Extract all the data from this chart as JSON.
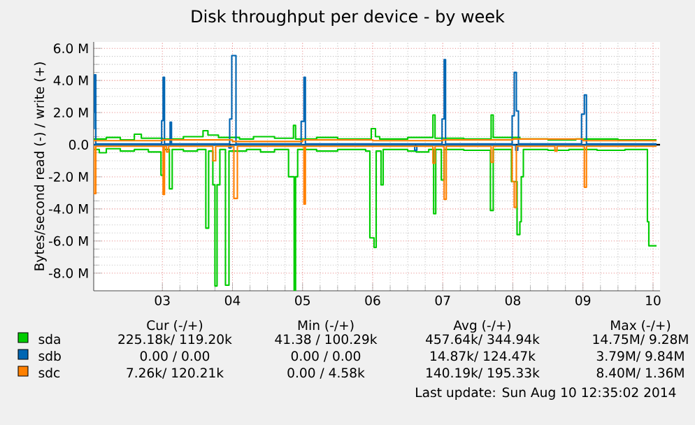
{
  "chart_data": {
    "type": "step",
    "title": "Disk throughput per device - by week",
    "ylabel": "Bytes/second read (-) / write (+)",
    "xlim": [
      2.02,
      10.1
    ],
    "xticks": [
      {
        "value": 3,
        "label": "03"
      },
      {
        "value": 4,
        "label": "04"
      },
      {
        "value": 5,
        "label": "05"
      },
      {
        "value": 6,
        "label": "06"
      },
      {
        "value": 7,
        "label": "07"
      },
      {
        "value": 8,
        "label": "08"
      },
      {
        "value": 9,
        "label": "09"
      },
      {
        "value": 10,
        "label": "10"
      }
    ],
    "ylim": [
      -9.1,
      6.4
    ],
    "yticks": [
      {
        "value": -8,
        "label": "-8.0 M"
      },
      {
        "value": -6,
        "label": "-6.0 M"
      },
      {
        "value": -4,
        "label": "-4.0 M"
      },
      {
        "value": -2,
        "label": "-2.0 M"
      },
      {
        "value": 0,
        "label": "0.0"
      },
      {
        "value": 2,
        "label": "2.0 M"
      },
      {
        "value": 4,
        "label": "4.0 M"
      },
      {
        "value": 6,
        "label": "6.0 M"
      }
    ],
    "grid": true,
    "legend": "bottom",
    "ref_lines": [
      {
        "axis": "y",
        "value": 0,
        "color": "#000000"
      }
    ],
    "series": [
      {
        "color": "#00cc00",
        "x": [
          2.02,
          2.1,
          2.2,
          2.4,
          2.6,
          2.8,
          2.98,
          3.02,
          3.1,
          3.14,
          3.3,
          3.5,
          3.62,
          3.66,
          3.72,
          3.75,
          3.78,
          3.82,
          3.9,
          3.95,
          4.2,
          4.4,
          4.6,
          4.8,
          4.88,
          4.9,
          4.93,
          5.2,
          5.5,
          5.9,
          5.96,
          6.02,
          6.05,
          6.12,
          6.15,
          6.5,
          6.62,
          6.8,
          6.87,
          6.9,
          6.98,
          7.02,
          7.3,
          7.68,
          7.72,
          7.98,
          8.06,
          8.1,
          8.12,
          8.15,
          8.5,
          8.8,
          9.2,
          9.6,
          9.92,
          9.94,
          10.05
        ],
        "values": [
          -0.3,
          -0.5,
          -0.25,
          -0.4,
          -0.3,
          -0.45,
          -1.9,
          -0.3,
          -2.75,
          -0.3,
          -0.4,
          -0.3,
          -5.2,
          -0.4,
          -2.5,
          -8.8,
          -2.5,
          -0.3,
          -8.75,
          -0.4,
          -0.3,
          -0.45,
          -0.3,
          -2.0,
          -9.1,
          -2.0,
          -0.3,
          -0.4,
          -0.3,
          -0.4,
          -5.8,
          -6.4,
          -0.4,
          -2.5,
          -0.3,
          -0.4,
          -0.45,
          -0.3,
          -4.3,
          -0.3,
          -2.2,
          -0.3,
          -0.35,
          -4.1,
          -0.3,
          -2.3,
          -5.6,
          -4.8,
          -2.0,
          -0.3,
          -0.35,
          -0.3,
          -0.35,
          -0.3,
          -4.8,
          -6.3,
          -6.3
        ]
      },
      {
        "name": "sda",
        "color": "#00cc00",
        "x": [
          2.02,
          2.2,
          2.4,
          2.6,
          2.7,
          3.0,
          3.3,
          3.58,
          3.65,
          3.8,
          4.1,
          4.3,
          4.6,
          4.87,
          4.9,
          5.2,
          5.5,
          5.98,
          6.04,
          6.1,
          6.5,
          6.86,
          6.89,
          7.3,
          7.69,
          7.72,
          8.1,
          8.5,
          8.9,
          9.5,
          10.05
        ],
        "values": [
          0.35,
          0.45,
          0.3,
          0.65,
          0.4,
          0.35,
          0.5,
          0.87,
          0.6,
          0.45,
          0.35,
          0.5,
          0.4,
          1.2,
          0.35,
          0.45,
          0.35,
          1.0,
          0.5,
          0.35,
          0.45,
          1.85,
          0.4,
          0.35,
          1.85,
          0.45,
          0.35,
          0.3,
          0.35,
          0.3,
          0.3
        ]
      },
      {
        "color": "#0066b3",
        "x": [
          2.02,
          3.95,
          3.98,
          6.6,
          6.63,
          8.04,
          8.07,
          10.05
        ],
        "values": [
          -0.02,
          -0.2,
          -0.02,
          -0.35,
          -0.02,
          -0.35,
          -0.02,
          -0.02
        ]
      },
      {
        "name": "sdb",
        "color": "#0066b3",
        "x": [
          2.02,
          2.025,
          2.03,
          2.05,
          2.99,
          3.01,
          3.03,
          3.11,
          3.13,
          3.96,
          3.99,
          4.05,
          4.98,
          5.02,
          5.04,
          6.99,
          7.02,
          7.04,
          7.99,
          8.02,
          8.05,
          8.08,
          8.98,
          9.02,
          9.05,
          10.05
        ],
        "values": [
          1.0,
          2.0,
          4.35,
          0.05,
          1.5,
          4.2,
          0.05,
          1.4,
          0.05,
          1.6,
          5.55,
          0.05,
          1.45,
          4.2,
          0.05,
          1.6,
          5.3,
          0.05,
          1.8,
          4.5,
          2.1,
          0.05,
          1.9,
          3.1,
          0.05,
          0.05
        ]
      },
      {
        "color": "#ff8000",
        "x": [
          2.02,
          2.025,
          2.05,
          3.01,
          3.03,
          3.06,
          3.09,
          3.72,
          3.76,
          4.02,
          4.07,
          5.02,
          5.04,
          6.86,
          6.89,
          7.02,
          7.05,
          7.69,
          7.72,
          7.99,
          8.02,
          8.05,
          8.6,
          8.63,
          9.02,
          9.05,
          10.05
        ],
        "values": [
          -0.1,
          -3.05,
          -0.1,
          -3.1,
          -0.1,
          -0.45,
          -0.1,
          -1.0,
          -0.1,
          -3.35,
          -0.1,
          -3.7,
          -0.1,
          -1.15,
          -0.1,
          -3.4,
          -0.1,
          -1.1,
          -0.1,
          -2.3,
          -3.9,
          -0.1,
          -0.4,
          -0.1,
          -2.65,
          -0.1,
          -0.1
        ]
      },
      {
        "name": "sdc",
        "color": "#ff8000",
        "x": [
          2.02,
          3.0,
          4.0,
          5.0,
          6.0,
          7.0,
          8.0,
          9.0,
          10.05
        ],
        "values": [
          0.25,
          0.3,
          0.2,
          0.3,
          0.25,
          0.3,
          0.35,
          0.25,
          0.25
        ]
      }
    ],
    "annotations": [
      "Cur (-/+)",
      "Min (-/+)",
      "Avg (-/+)",
      "Max (-/+)",
      "225.18k/ 119.20k",
      "41.38 / 100.29k",
      "457.64k/ 344.94k",
      "14.75M/ 9.28M",
      "0.00 / 0.00",
      "0.00 / 0.00",
      "14.87k/ 124.47k",
      "3.79M/ 9.84M",
      "7.26k/ 120.21k",
      "0.00 / 4.58k",
      "140.19k/ 195.33k",
      "8.40M/ 1.36M",
      "Last update: Sun Aug 10 12:35:02 2014"
    ]
  }
}
